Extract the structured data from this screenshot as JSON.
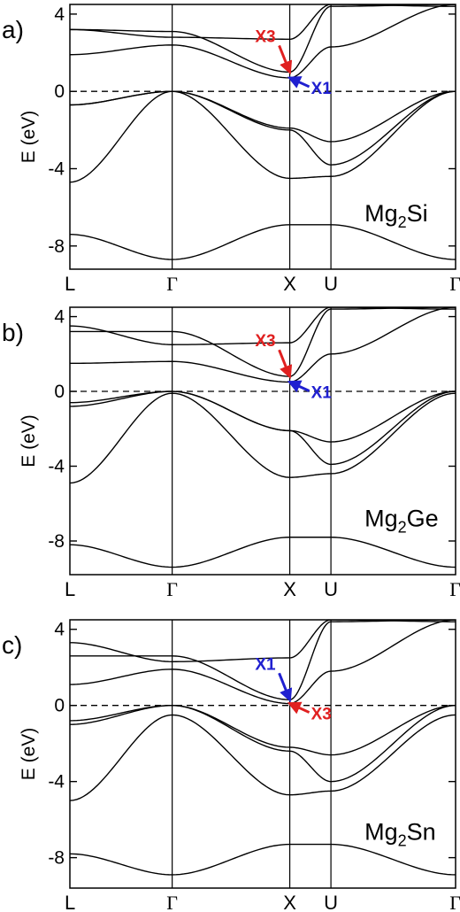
{
  "chart_data": [
    {
      "type": "line",
      "panel_label": "a)",
      "compound": {
        "base": "Mg",
        "sub": "2",
        "tail": "Si"
      },
      "ylabel": "E (eV)",
      "ylim": [
        -9.2,
        4.5
      ],
      "yticks": [
        4,
        0,
        -4,
        -8
      ],
      "ytick_labels": [
        "4",
        "0",
        "-4",
        "-8"
      ],
      "kpath": [
        {
          "label": "L",
          "pos": 0.0
        },
        {
          "label": "Γ",
          "pos": 0.87
        },
        {
          "label": "X",
          "pos": 1.87
        },
        {
          "label": "U",
          "pos": 2.22
        },
        {
          "label": "Γ",
          "pos": 3.28
        }
      ],
      "fermi_level": 0,
      "series": [
        {
          "x": [
            0,
            0.87,
            1.87,
            2.22,
            3.28
          ],
          "y": [
            -7.4,
            -8.7,
            -6.9,
            -6.9,
            -8.7
          ]
        },
        {
          "x": [
            0,
            0.87,
            1.87,
            2.22,
            3.28
          ],
          "y": [
            -4.7,
            0.0,
            -4.5,
            -4.4,
            0.0
          ]
        },
        {
          "x": [
            0,
            0.87,
            1.87,
            2.22,
            3.28
          ],
          "y": [
            -0.7,
            0.0,
            -2.0,
            -3.8,
            0.0
          ]
        },
        {
          "x": [
            0,
            0.87,
            1.87,
            2.22,
            3.28
          ],
          "y": [
            -0.7,
            0.0,
            -1.9,
            -2.6,
            0.0
          ]
        },
        {
          "x": [
            0,
            0.87,
            1.87,
            2.22,
            3.28
          ],
          "y": [
            1.9,
            2.4,
            0.7,
            2.3,
            4.5
          ]
        },
        {
          "x": [
            0,
            0.87,
            1.87,
            2.22,
            3.28
          ],
          "y": [
            3.2,
            3.1,
            1.0,
            4.4,
            4.5
          ]
        },
        {
          "x": [
            0,
            0.87,
            1.87,
            2.22,
            3.28
          ],
          "y": [
            3.2,
            2.8,
            2.7,
            4.5,
            4.4
          ]
        }
      ],
      "annotations": [
        {
          "text": "X3",
          "color": "#e02020",
          "x": 1.87,
          "y": 1.0
        },
        {
          "text": "X1",
          "color": "#2020d0",
          "x": 1.87,
          "y": 0.7
        }
      ]
    },
    {
      "type": "line",
      "panel_label": "b)",
      "compound": {
        "base": "Mg",
        "sub": "2",
        "tail": "Ge"
      },
      "ylabel": "E (eV)",
      "ylim": [
        -9.8,
        4.5
      ],
      "yticks": [
        4,
        0,
        -4,
        -8
      ],
      "ytick_labels": [
        "4",
        "0",
        "-4",
        "-8"
      ],
      "kpath": [
        {
          "label": "L",
          "pos": 0.0
        },
        {
          "label": "Γ",
          "pos": 0.87
        },
        {
          "label": "X",
          "pos": 1.87
        },
        {
          "label": "U",
          "pos": 2.22
        },
        {
          "label": "Γ",
          "pos": 3.28
        }
      ],
      "fermi_level": 0,
      "series": [
        {
          "x": [
            0,
            0.87,
            1.87,
            2.22,
            3.28
          ],
          "y": [
            -8.2,
            -9.4,
            -7.8,
            -7.8,
            -9.4
          ]
        },
        {
          "x": [
            0,
            0.87,
            1.87,
            2.22,
            3.28
          ],
          "y": [
            -4.9,
            -0.1,
            -4.6,
            -4.4,
            -0.1
          ]
        },
        {
          "x": [
            0,
            0.87,
            1.87,
            2.22,
            3.28
          ],
          "y": [
            -0.8,
            0.0,
            -2.1,
            -3.9,
            0.0
          ]
        },
        {
          "x": [
            0,
            0.87,
            1.87,
            2.22,
            3.28
          ],
          "y": [
            -0.6,
            0.0,
            -2.1,
            -2.7,
            0.0
          ]
        },
        {
          "x": [
            0,
            0.87,
            1.87,
            2.22,
            3.28
          ],
          "y": [
            1.5,
            1.6,
            0.5,
            2.0,
            4.5
          ]
        },
        {
          "x": [
            0,
            0.87,
            1.87,
            2.22,
            3.28
          ],
          "y": [
            3.2,
            3.2,
            0.8,
            4.4,
            4.5
          ]
        },
        {
          "x": [
            0,
            0.87,
            1.87,
            2.22,
            3.28
          ],
          "y": [
            3.5,
            2.5,
            2.6,
            4.5,
            4.4
          ]
        }
      ],
      "annotations": [
        {
          "text": "X3",
          "color": "#e02020",
          "x": 1.87,
          "y": 0.8
        },
        {
          "text": "X1",
          "color": "#2020d0",
          "x": 1.87,
          "y": 0.5
        }
      ]
    },
    {
      "type": "line",
      "panel_label": "c)",
      "compound": {
        "base": "Mg",
        "sub": "2",
        "tail": "Sn"
      },
      "ylabel": "E (eV)",
      "ylim": [
        -9.6,
        4.5
      ],
      "yticks": [
        4,
        0,
        -4,
        -8
      ],
      "ytick_labels": [
        "4",
        "0",
        "-4",
        "-8"
      ],
      "kpath": [
        {
          "label": "L",
          "pos": 0.0
        },
        {
          "label": "Γ",
          "pos": 0.87
        },
        {
          "label": "X",
          "pos": 1.87
        },
        {
          "label": "U",
          "pos": 2.22
        },
        {
          "label": "Γ",
          "pos": 3.28
        }
      ],
      "fermi_level": 0,
      "series": [
        {
          "x": [
            0,
            0.87,
            1.87,
            2.22,
            3.28
          ],
          "y": [
            -7.8,
            -8.9,
            -7.3,
            -7.3,
            -8.9
          ]
        },
        {
          "x": [
            0,
            0.87,
            1.87,
            2.22,
            3.28
          ],
          "y": [
            -5.0,
            -0.5,
            -4.7,
            -4.5,
            -0.5
          ]
        },
        {
          "x": [
            0,
            0.87,
            1.87,
            2.22,
            3.28
          ],
          "y": [
            -1.0,
            0.0,
            -2.4,
            -4.0,
            0.0
          ]
        },
        {
          "x": [
            0,
            0.87,
            1.87,
            2.22,
            3.28
          ],
          "y": [
            -0.8,
            0.0,
            -2.2,
            -2.6,
            0.0
          ]
        },
        {
          "x": [
            0,
            0.87,
            1.87,
            2.22,
            3.28
          ],
          "y": [
            1.1,
            1.9,
            0.1,
            1.8,
            4.5
          ]
        },
        {
          "x": [
            0,
            0.87,
            1.87,
            2.22,
            3.28
          ],
          "y": [
            2.6,
            2.6,
            0.3,
            4.4,
            4.5
          ]
        },
        {
          "x": [
            0,
            0.87,
            1.87,
            2.22,
            3.28
          ],
          "y": [
            3.3,
            2.3,
            2.5,
            4.5,
            4.4
          ]
        }
      ],
      "annotations": [
        {
          "text": "X1",
          "color": "#2020d0",
          "x": 1.87,
          "y": 0.3
        },
        {
          "text": "X3",
          "color": "#e02020",
          "x": 1.87,
          "y": 0.1
        }
      ]
    }
  ]
}
